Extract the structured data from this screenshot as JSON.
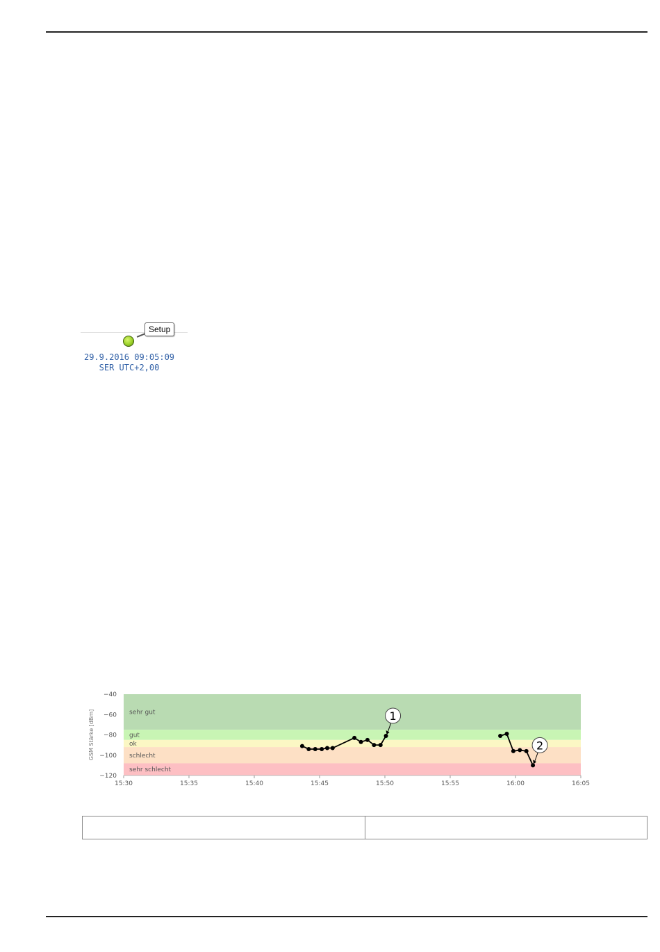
{
  "status": {
    "setup_label": "Setup",
    "datetime": "29.9.2016 09:05:09",
    "timezone": "SER UTC+2,00",
    "led_color": "#9bd12a"
  },
  "chart_data": {
    "type": "line",
    "ylabel": "GSM Stärke [dBm]",
    "xlabel": "",
    "title": "",
    "ylim": [
      -120,
      -40
    ],
    "xlim": [
      "15:30",
      "16:05"
    ],
    "x_ticks": [
      "15:30",
      "15:35",
      "15:40",
      "15:45",
      "15:50",
      "15:55",
      "16:00",
      "16:05"
    ],
    "y_ticks": [
      -40,
      -60,
      -80,
      -100,
      -120
    ],
    "bands": [
      {
        "label": "sehr gut",
        "from": -75,
        "to": -40,
        "color": "#b9dbb2"
      },
      {
        "label": "gut",
        "from": -85,
        "to": -75,
        "color": "#c8f5b4"
      },
      {
        "label": "ok",
        "from": -92,
        "to": -85,
        "color": "#fbf7c4"
      },
      {
        "label": "schlecht",
        "from": -108,
        "to": -92,
        "color": "#fde0c5"
      },
      {
        "label": "sehr schlecht",
        "from": -120,
        "to": -108,
        "color": "#fdbfc3"
      }
    ],
    "series": [
      {
        "segments": [
          {
            "x": [
              "15:43:40",
              "15:44:10",
              "15:44:40",
              "15:45:10",
              "15:45:35",
              "15:46:00",
              "15:47:40",
              "15:48:10",
              "15:48:40",
              "15:49:10",
              "15:49:40",
              "15:50:05"
            ],
            "y": [
              -91,
              -94,
              -94,
              -94,
              -93,
              -93,
              -83,
              -87,
              -85,
              -90,
              -90,
              -81
            ]
          },
          {
            "x": [
              "15:58:50",
              "15:59:20",
              "15:59:50",
              "16:00:20",
              "16:00:50",
              "16:01:20"
            ],
            "y": [
              -81,
              -79,
              -96,
              -95,
              -96,
              -110
            ]
          }
        ]
      }
    ],
    "annotations": [
      {
        "text": "1",
        "x": "15:50:05",
        "y": -81
      },
      {
        "text": "2",
        "x": "16:01:20",
        "y": -110
      }
    ],
    "line_color": "#000000"
  }
}
